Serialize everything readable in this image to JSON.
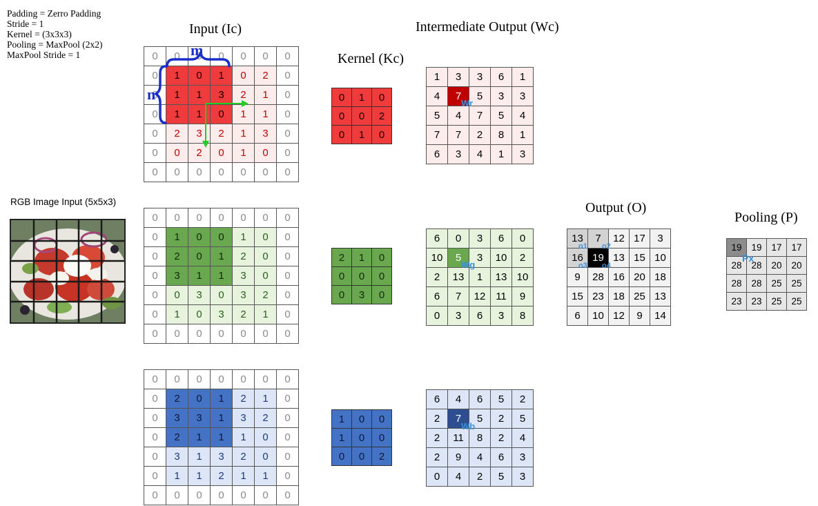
{
  "params": [
    "Padding = Zerro Padding",
    "Stride = 1",
    "Kernel = (3x3x3)",
    "Pooling = MaxPool (2x2)",
    "MaxPool Stride = 1"
  ],
  "titles": {
    "input": "Input (Ic)",
    "kernel": "Kernel (Kc)",
    "intermediate": "Intermediate Output (Wc)",
    "output": "Output (O)",
    "pooling": "Pooling (P)",
    "rgb": "RGB Image Input (5x5x3)"
  },
  "annotations": {
    "m": "m",
    "n": "n"
  },
  "colors": {
    "red": "#ef3b3b",
    "green": "#6aa84f",
    "blue": "#4472c4",
    "arrow": "#22cc22",
    "brace": "#1a2fc9",
    "label": "#3a8fd9"
  },
  "icons": [
    "food-photo-icon"
  ],
  "input": {
    "red": [
      [
        0,
        0,
        0,
        0,
        0,
        0,
        0
      ],
      [
        0,
        1,
        0,
        1,
        0,
        2,
        0
      ],
      [
        0,
        1,
        1,
        3,
        2,
        1,
        0
      ],
      [
        0,
        1,
        1,
        0,
        1,
        1,
        0
      ],
      [
        0,
        2,
        3,
        2,
        1,
        3,
        0
      ],
      [
        0,
        0,
        2,
        0,
        1,
        0,
        0
      ],
      [
        0,
        0,
        0,
        0,
        0,
        0,
        0
      ]
    ],
    "green": [
      [
        0,
        0,
        0,
        0,
        0,
        0,
        0
      ],
      [
        0,
        1,
        0,
        0,
        1,
        0,
        0
      ],
      [
        0,
        2,
        0,
        1,
        2,
        0,
        0
      ],
      [
        0,
        3,
        1,
        1,
        3,
        0,
        0
      ],
      [
        0,
        0,
        3,
        0,
        3,
        2,
        0
      ],
      [
        0,
        1,
        0,
        3,
        2,
        1,
        0
      ],
      [
        0,
        0,
        0,
        0,
        0,
        0,
        0
      ]
    ],
    "blue": [
      [
        0,
        0,
        0,
        0,
        0,
        0,
        0
      ],
      [
        0,
        2,
        0,
        1,
        2,
        1,
        0
      ],
      [
        0,
        3,
        3,
        1,
        3,
        2,
        0
      ],
      [
        0,
        2,
        1,
        1,
        1,
        0,
        0
      ],
      [
        0,
        3,
        1,
        3,
        2,
        0,
        0
      ],
      [
        0,
        1,
        1,
        2,
        1,
        1,
        0
      ],
      [
        0,
        0,
        0,
        0,
        0,
        0,
        0
      ]
    ]
  },
  "kernel": {
    "red": [
      [
        0,
        1,
        0
      ],
      [
        0,
        0,
        2
      ],
      [
        0,
        1,
        0
      ]
    ],
    "green": [
      [
        2,
        1,
        0
      ],
      [
        0,
        0,
        0
      ],
      [
        0,
        3,
        0
      ]
    ],
    "blue": [
      [
        1,
        0,
        0
      ],
      [
        1,
        0,
        0
      ],
      [
        0,
        0,
        2
      ]
    ]
  },
  "intermediate": {
    "red": [
      [
        1,
        3,
        3,
        6,
        1
      ],
      [
        4,
        7,
        5,
        3,
        3
      ],
      [
        5,
        4,
        7,
        5,
        4
      ],
      [
        7,
        7,
        2,
        8,
        1
      ],
      [
        6,
        3,
        4,
        1,
        3
      ]
    ],
    "green": [
      [
        6,
        0,
        3,
        6,
        0
      ],
      [
        10,
        5,
        3,
        10,
        2
      ],
      [
        2,
        13,
        1,
        13,
        10
      ],
      [
        6,
        7,
        12,
        11,
        9
      ],
      [
        0,
        3,
        6,
        3,
        8
      ]
    ],
    "blue": [
      [
        6,
        4,
        6,
        5,
        2
      ],
      [
        2,
        7,
        5,
        2,
        5
      ],
      [
        2,
        11,
        8,
        2,
        4
      ],
      [
        2,
        9,
        4,
        6,
        3
      ],
      [
        0,
        4,
        2,
        5,
        3
      ]
    ]
  },
  "intermediate_labels": {
    "red": "Wr",
    "green": "Wg",
    "blue": "Wb"
  },
  "output": [
    [
      13,
      7,
      12,
      17,
      3
    ],
    [
      16,
      19,
      13,
      15,
      10
    ],
    [
      9,
      28,
      16,
      20,
      18
    ],
    [
      15,
      23,
      18,
      25,
      13
    ],
    [
      6,
      10,
      12,
      9,
      14
    ]
  ],
  "output_labels": [
    "o1",
    "o2",
    "o3",
    "o4"
  ],
  "pooling": [
    [
      19,
      19,
      17,
      17
    ],
    [
      28,
      28,
      20,
      20
    ],
    [
      28,
      28,
      25,
      25
    ],
    [
      23,
      23,
      25,
      25
    ]
  ],
  "pooling_label": "Px"
}
